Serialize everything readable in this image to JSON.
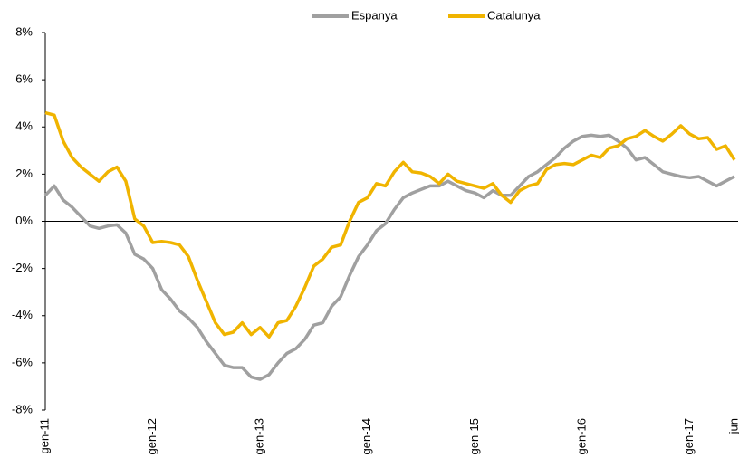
{
  "chart_data": {
    "type": "line",
    "categories": [
      "gen-11",
      null,
      null,
      null,
      null,
      null,
      null,
      null,
      null,
      null,
      null,
      null,
      "gen-12",
      null,
      null,
      null,
      null,
      null,
      null,
      null,
      null,
      null,
      null,
      null,
      "gen-13",
      null,
      null,
      null,
      null,
      null,
      null,
      null,
      null,
      null,
      null,
      null,
      "gen-14",
      null,
      null,
      null,
      null,
      null,
      null,
      null,
      null,
      null,
      null,
      null,
      "gen-15",
      null,
      null,
      null,
      null,
      null,
      null,
      null,
      null,
      null,
      null,
      null,
      "gen-16",
      null,
      null,
      null,
      null,
      null,
      null,
      null,
      null,
      null,
      null,
      null,
      "gen-17",
      null,
      null,
      null,
      null,
      "jun"
    ],
    "series": [
      {
        "name": "Espanya",
        "color": "#a0a0a0",
        "values": [
          1.1,
          1.5,
          0.9,
          0.6,
          0.2,
          -0.2,
          -0.3,
          -0.2,
          -0.15,
          -0.5,
          -1.4,
          -1.6,
          -2.0,
          -2.9,
          -3.3,
          -3.8,
          -4.1,
          -4.5,
          -5.1,
          -5.6,
          -6.1,
          -6.2,
          -6.2,
          -6.6,
          -6.7,
          -6.5,
          -6.0,
          -5.6,
          -5.4,
          -5.0,
          -4.4,
          -4.3,
          -3.6,
          -3.2,
          -2.3,
          -1.5,
          -1.0,
          -0.4,
          -0.1,
          0.5,
          1.0,
          1.2,
          1.35,
          1.5,
          1.5,
          1.7,
          1.5,
          1.3,
          1.2,
          1.0,
          1.3,
          1.1,
          1.1,
          1.5,
          1.9,
          2.1,
          2.4,
          2.7,
          3.1,
          3.4,
          3.6,
          3.65,
          3.6,
          3.65,
          3.4,
          3.1,
          2.6,
          2.7,
          2.4,
          2.1,
          2.0,
          1.9,
          1.85,
          1.9,
          1.7,
          1.5,
          1.7,
          1.9
        ]
      },
      {
        "name": "Catalunya",
        "color": "#f0b400",
        "values": [
          4.6,
          4.5,
          3.4,
          2.7,
          2.3,
          2.0,
          1.7,
          2.1,
          2.3,
          1.7,
          0.1,
          -0.2,
          -0.9,
          -0.85,
          -0.9,
          -1.0,
          -1.5,
          -2.5,
          -3.4,
          -4.3,
          -4.8,
          -4.7,
          -4.3,
          -4.8,
          -4.5,
          -4.9,
          -4.3,
          -4.2,
          -3.6,
          -2.8,
          -1.9,
          -1.6,
          -1.1,
          -1.0,
          0.0,
          0.8,
          1.0,
          1.6,
          1.5,
          2.1,
          2.5,
          2.1,
          2.05,
          1.9,
          1.6,
          2.0,
          1.7,
          1.6,
          1.5,
          1.4,
          1.6,
          1.1,
          0.8,
          1.3,
          1.5,
          1.6,
          2.2,
          2.4,
          2.45,
          2.4,
          2.6,
          2.8,
          2.7,
          3.1,
          3.2,
          3.5,
          3.6,
          3.85,
          3.6,
          3.4,
          3.7,
          4.05,
          3.7,
          3.5,
          3.55,
          3.05,
          3.2,
          2.6
        ]
      }
    ],
    "ylim": [
      -8,
      8
    ],
    "yticks": [
      {
        "value": -8,
        "label": "-8%"
      },
      {
        "value": -6,
        "label": "-6%"
      },
      {
        "value": -4,
        "label": "-4%"
      },
      {
        "value": -2,
        "label": "-2%"
      },
      {
        "value": 0,
        "label": "0%"
      },
      {
        "value": 2,
        "label": "2%"
      },
      {
        "value": 4,
        "label": "4%"
      },
      {
        "value": 6,
        "label": "6%"
      },
      {
        "value": 8,
        "label": "8%"
      }
    ],
    "grid": false,
    "legend": "top"
  }
}
